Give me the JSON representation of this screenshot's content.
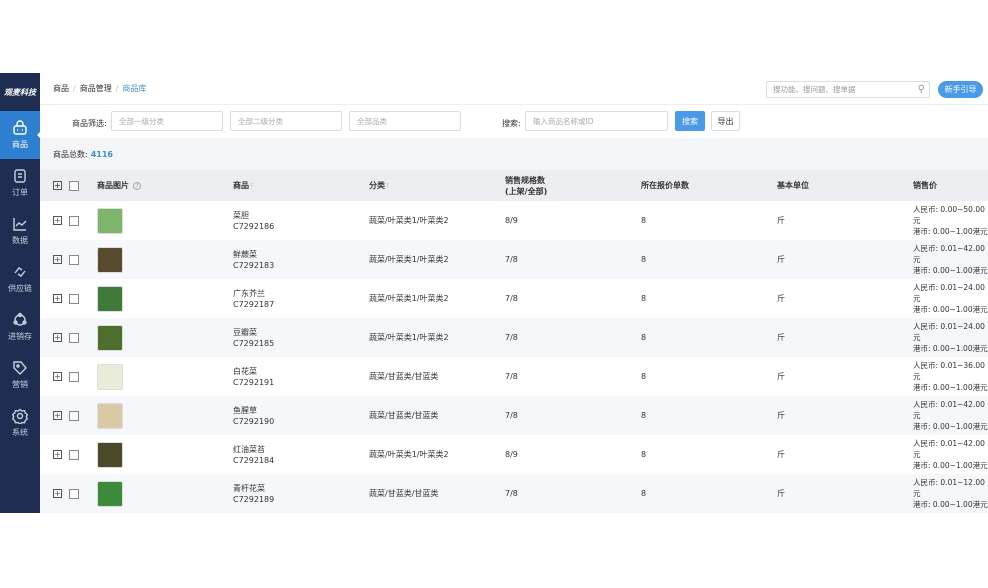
{
  "brand": "观麦科技",
  "sidebar": {
    "items": [
      {
        "label": "商品",
        "icon": "shopping-bag-icon",
        "active": true
      },
      {
        "label": "订单",
        "icon": "order-icon"
      },
      {
        "label": "数据",
        "icon": "chart-icon"
      },
      {
        "label": "供应链",
        "icon": "supply-chain-icon"
      },
      {
        "label": "进销存",
        "icon": "inventory-icon"
      },
      {
        "label": "营销",
        "icon": "tag-icon"
      },
      {
        "label": "系统",
        "icon": "gear-icon"
      }
    ]
  },
  "breadcrumb": [
    "商品",
    "商品管理",
    "商品库"
  ],
  "global_search": {
    "placeholder": "搜功能、搜问题、搜单据"
  },
  "guide_button": "新手引导",
  "filters": {
    "label": "商品筛选:",
    "level1": "全部一级分类",
    "level2": "全部二级分类",
    "category": "全部品类",
    "search_label": "搜索:",
    "search_placeholder": "输入商品名称或ID",
    "search_button": "搜索",
    "export_button": "导出"
  },
  "total": {
    "label": "商品总数:",
    "value": "4116"
  },
  "columns": {
    "image": "商品图片",
    "product": "商品",
    "category": "分类",
    "spec_line1": "销售规格数",
    "spec_line2": "(上架/全部)",
    "quotes": "所在报价单数",
    "unit": "基本单位",
    "price": "销售价"
  },
  "colors": {
    "sidebar": "#1f2d52",
    "accent": "#2f7fd1",
    "primary_button": "#4a9ae8"
  },
  "rows": [
    {
      "name": "菜胆",
      "code": "C7292186",
      "category": "蔬菜/叶菜类1/叶菜类2",
      "spec": "8/9",
      "quotes": "8",
      "unit": "斤",
      "rmb": "人民币: 0.00~50.00元",
      "hkd": "港币: 0.00~1.00港元",
      "img": "#7fb56a"
    },
    {
      "name": "鲜蕨菜",
      "code": "C7292183",
      "category": "蔬菜/叶菜类1/叶菜类2",
      "spec": "7/8",
      "quotes": "8",
      "unit": "斤",
      "rmb": "人民币: 0.01~42.00元",
      "hkd": "港币: 0.00~1.00港元",
      "img": "#5a4a2e"
    },
    {
      "name": "广东芥兰",
      "code": "C7292187",
      "category": "蔬菜/叶菜类1/叶菜类2",
      "spec": "7/8",
      "quotes": "8",
      "unit": "斤",
      "rmb": "人民币: 0.01~24.00元",
      "hkd": "港币: 0.00~1.00港元",
      "img": "#3f7a3a"
    },
    {
      "name": "豆瓣菜",
      "code": "C7292185",
      "category": "蔬菜/叶菜类1/叶菜类2",
      "spec": "7/8",
      "quotes": "8",
      "unit": "斤",
      "rmb": "人民币: 0.01~24.00元",
      "hkd": "港币: 0.00~1.00港元",
      "img": "#4e6e2e"
    },
    {
      "name": "白花菜",
      "code": "C7292191",
      "category": "蔬菜/甘蓝类/甘蓝类",
      "spec": "7/8",
      "quotes": "8",
      "unit": "斤",
      "rmb": "人民币: 0.01~36.00元",
      "hkd": "港币: 0.00~1.00港元",
      "img": "#e8ecd8"
    },
    {
      "name": "鱼腥草",
      "code": "C7292190",
      "category": "蔬菜/甘蓝类/甘蓝类",
      "spec": "7/8",
      "quotes": "8",
      "unit": "斤",
      "rmb": "人民币: 0.01~42.00元",
      "hkd": "港币: 0.00~1.00港元",
      "img": "#d9c9a4"
    },
    {
      "name": "红油菜苔",
      "code": "C7292184",
      "category": "蔬菜/叶菜类1/叶菜类2",
      "spec": "8/9",
      "quotes": "8",
      "unit": "斤",
      "rmb": "人民币: 0.01~42.00元",
      "hkd": "港币: 0.00~1.00港元",
      "img": "#4a4a2a"
    },
    {
      "name": "青杆花菜",
      "code": "C7292189",
      "category": "蔬菜/甘蓝类/甘蓝类",
      "spec": "7/8",
      "quotes": "8",
      "unit": "斤",
      "rmb": "人民币: 0.01~12.00元",
      "hkd": "港币: 0.00~1.00港元",
      "img": "#3d8a3a"
    }
  ]
}
